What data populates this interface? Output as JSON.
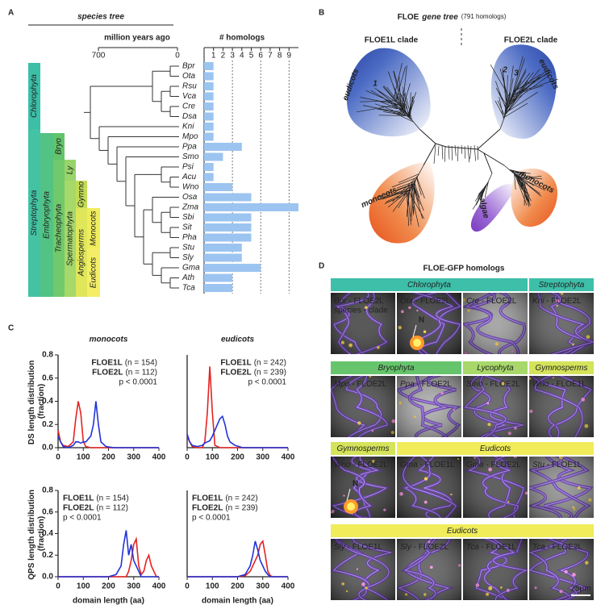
{
  "panels": {
    "a": "A",
    "b": "B",
    "c": "C",
    "d": "D"
  },
  "species_tree": {
    "title": "species tree",
    "time_label": "million years ago",
    "time_xlim": [
      700,
      0
    ],
    "time_ticks": [
      700,
      0
    ],
    "clades": [
      {
        "name": "Chlorophyta",
        "color": "#3bbfa6"
      },
      {
        "name": "Streptophyta",
        "color": "#44c3a4"
      },
      {
        "name": "Embryophyta",
        "color": "#52c382"
      },
      {
        "name": "Bryo",
        "color": "#62c46a"
      },
      {
        "name": "Tracheophyta",
        "color": "#71c96c"
      },
      {
        "name": "Ly",
        "color": "#98d46a"
      },
      {
        "name": "Spermatophyta",
        "color": "#a6d86a"
      },
      {
        "name": "Gymno",
        "color": "#c2dc55"
      },
      {
        "name": "Angiosperms",
        "color": "#dfe65a"
      },
      {
        "name": "Monocots",
        "color": "#f0ed5c"
      },
      {
        "name": "Eudicots",
        "color": "#f3ee66"
      }
    ]
  },
  "gene_tree": {
    "title": "FLOE",
    "title_italic": "gene tree",
    "subtitle": "(791 homologs)",
    "left_clade": "FLOE1L clade",
    "right_clade": "FLOE2L clade",
    "groups": [
      {
        "text": "eudicots",
        "color": "#2c4aa8"
      },
      {
        "text": "1",
        "color": "#ffffff"
      },
      {
        "text": "2",
        "color": "#ffffff"
      },
      {
        "text": "3",
        "color": "#ffffff"
      },
      {
        "text": "eudicots",
        "color": "#2c4aa8"
      },
      {
        "text": "monocots",
        "color": "#e8601c"
      },
      {
        "text": "algae",
        "color": "#8a3fc8"
      },
      {
        "text": "monocots",
        "color": "#e8601c"
      }
    ]
  },
  "chart_data": [
    {
      "type": "hbar",
      "title": "# homologs",
      "categories": [
        "Bpr",
        "Ota",
        "Rsu",
        "Vca",
        "Cre",
        "Dsa",
        "Kni",
        "Mpo",
        "Ppa",
        "Smo",
        "Psi",
        "Acu",
        "Wno",
        "Osa",
        "Zma",
        "Sbi",
        "Sit",
        "Pha",
        "Stu",
        "Sly",
        "Gma",
        "Ath",
        "Tca"
      ],
      "values": [
        1,
        1,
        1,
        1,
        1,
        1,
        1,
        1,
        4,
        2,
        1,
        1,
        3,
        5,
        10,
        5,
        5,
        5,
        4,
        4,
        6,
        3,
        3
      ],
      "color": "#9cc4f0",
      "xlim": [
        0,
        10
      ],
      "xticks": [
        1,
        2,
        3,
        4,
        5,
        6,
        7,
        8,
        9
      ]
    },
    {
      "type": "line",
      "title": "monocots",
      "ylabel": "DS length distribution (fraction)",
      "x": [
        0,
        10,
        20,
        40,
        60,
        70,
        80,
        90,
        100,
        110,
        130,
        140,
        150,
        160,
        170,
        190,
        220,
        260,
        300,
        400
      ],
      "series": [
        {
          "name": "FLOE1L",
          "n_label": "(n = 154)",
          "color": "#e42320",
          "values": [
            0.15,
            0.05,
            0.02,
            0.01,
            0.05,
            0.25,
            0.4,
            0.3,
            0.05,
            0.01,
            0,
            0,
            0,
            0,
            0,
            0,
            0,
            0,
            0,
            0
          ]
        },
        {
          "name": "FLOE2L",
          "n_label": "(n = 112)",
          "color": "#2233d8",
          "values": [
            0.1,
            0.05,
            0.01,
            0,
            0.02,
            0.05,
            0.05,
            0.04,
            0.05,
            0.05,
            0.1,
            0.2,
            0.4,
            0.2,
            0.05,
            0.01,
            0,
            0,
            0,
            0
          ]
        }
      ],
      "annotation": "p < 0.0001",
      "legend": "upper right",
      "xlim": [
        0,
        400
      ],
      "xticks": [
        0,
        100,
        200,
        300,
        400
      ],
      "ylim": [
        0,
        0.8
      ],
      "yticks": [
        {
          "value": 0,
          "label": "0.0"
        },
        0.2,
        0.4,
        0.6,
        0.8
      ]
    },
    {
      "type": "line",
      "title": "eudicots",
      "x": [
        0,
        10,
        20,
        40,
        60,
        70,
        80,
        90,
        100,
        110,
        130,
        140,
        150,
        160,
        170,
        190,
        220,
        260,
        300,
        400
      ],
      "series": [
        {
          "name": "FLOE1L",
          "n_label": "(n = 242)",
          "color": "#e42320",
          "values": [
            0.1,
            0.05,
            0.01,
            0,
            0,
            0.05,
            0.3,
            0.7,
            0.3,
            0.02,
            0,
            0,
            0,
            0,
            0,
            0,
            0,
            0,
            0,
            0
          ]
        },
        {
          "name": "FLOE2L",
          "n_label": "(n = 239)",
          "color": "#2233d8",
          "values": [
            0.12,
            0.05,
            0.02,
            0.01,
            0.02,
            0.04,
            0.05,
            0.06,
            0.1,
            0.15,
            0.25,
            0.27,
            0.2,
            0.1,
            0.05,
            0.02,
            0,
            0,
            0,
            0
          ]
        }
      ],
      "annotation": "p < 0.0001",
      "legend": "upper right",
      "xlim": [
        0,
        400
      ],
      "xticks": [
        0,
        100,
        200,
        300,
        400
      ],
      "ylim": [
        0,
        0.8
      ]
    },
    {
      "type": "line",
      "ylabel": "QPS length distribution (fraction)",
      "xlabel": "domain length (aa)",
      "x": [
        0,
        100,
        200,
        230,
        250,
        260,
        270,
        280,
        290,
        300,
        310,
        320,
        330,
        340,
        350,
        360,
        370,
        380,
        390,
        400
      ],
      "series": [
        {
          "name": "FLOE1L",
          "n_label": "(n = 154)",
          "color": "#e42320",
          "values": [
            0,
            0,
            0,
            0,
            0,
            0,
            0,
            0.05,
            0.15,
            0.3,
            0.35,
            0.1,
            0.02,
            0.05,
            0.15,
            0.2,
            0.1,
            0.05,
            0,
            0
          ]
        },
        {
          "name": "FLOE2L",
          "n_label": "(n = 112)",
          "color": "#2233d8",
          "values": [
            0,
            0,
            0,
            0.02,
            0.1,
            0.3,
            0.43,
            0.2,
            0.3,
            0.15,
            0.1,
            0.05,
            0,
            0,
            0,
            0,
            0,
            0,
            0,
            0
          ]
        }
      ],
      "annotation": "p < 0.0001",
      "legend": "upper left",
      "xlim": [
        0,
        400
      ],
      "xticks": [
        0,
        100,
        200,
        300,
        400
      ],
      "ylim": [
        0,
        0.8
      ],
      "yticks": [
        {
          "value": 0,
          "label": "0.0"
        },
        0.2,
        0.4,
        0.6,
        0.8
      ]
    },
    {
      "type": "line",
      "xlabel": "domain length (aa)",
      "x": [
        0,
        100,
        200,
        230,
        250,
        260,
        270,
        280,
        290,
        300,
        310,
        320,
        330,
        340,
        350,
        360,
        370,
        380,
        390,
        400
      ],
      "series": [
        {
          "name": "FLOE1L",
          "n_label": "(n = 242)",
          "color": "#e42320",
          "values": [
            0,
            0,
            0,
            0.01,
            0.05,
            0.1,
            0.15,
            0.2,
            0.3,
            0.33,
            0.2,
            0.05,
            0.01,
            0,
            0,
            0,
            0,
            0,
            0,
            0
          ]
        },
        {
          "name": "FLOE2L",
          "n_label": "(n = 239)",
          "color": "#2233d8",
          "values": [
            0,
            0,
            0,
            0.02,
            0.1,
            0.2,
            0.33,
            0.25,
            0.15,
            0.1,
            0.05,
            0.02,
            0,
            0,
            0,
            0,
            0,
            0,
            0,
            0
          ]
        }
      ],
      "annotation": "p < 0.0001",
      "legend": "upper left",
      "xlim": [
        0,
        400
      ],
      "xticks": [
        0,
        100,
        200,
        300,
        400
      ],
      "ylim": [
        0,
        0.8
      ]
    }
  ],
  "gfp": {
    "title": "FLOE-GFP homologs",
    "scale_bar": "25μm",
    "rows": [
      {
        "headers": [
          {
            "text": "Chlorophyta",
            "color": "#3dbfa9"
          },
          {
            "text": "Streptophyta",
            "color": "#3dbfa9"
          }
        ],
        "images": [
          {
            "caption": "Bpr - FLOE2L",
            "subcaption": "species - clade"
          },
          {
            "caption": "Ota - FLOE2L",
            "marker": "N"
          },
          {
            "caption": "Cre - FLOE2L"
          },
          {
            "caption": "Kni - FLOE2L"
          }
        ]
      },
      {
        "headers": [
          {
            "text": "Bryophyta",
            "color": "#66c56c"
          },
          {
            "text": "Lycophyta",
            "color": "#a8d86a"
          },
          {
            "text": "Gymnosperms",
            "color": "#d4e35a"
          }
        ],
        "images": [
          {
            "caption": "Mpo - FLOE2L"
          },
          {
            "caption": "Ppa - FLOE2L"
          },
          {
            "caption": "Smo - FLOE2L"
          },
          {
            "caption": "Wno - FLOE1L"
          }
        ]
      },
      {
        "headers": [
          {
            "text": "Gymnosperms",
            "color": "#d4e35a"
          },
          {
            "text": "Eudicots",
            "color": "#f0ec5a"
          }
        ],
        "images": [
          {
            "caption": "Wno - FLOE2L",
            "marker": "N"
          },
          {
            "caption": "Gma - FLOE1L"
          },
          {
            "caption": "Gma - FLOE2L"
          },
          {
            "caption": "Stu - FLOE1L"
          }
        ]
      },
      {
        "headers": [
          {
            "text": "Eudicots",
            "color": "#f0ec5a"
          }
        ],
        "images": [
          {
            "caption": "Sly - FLOE1L"
          },
          {
            "caption": "Sly - FLOE2L"
          },
          {
            "caption": "Tca - FLOE1L"
          },
          {
            "caption": "Tca - FLOE2L"
          }
        ]
      }
    ]
  }
}
